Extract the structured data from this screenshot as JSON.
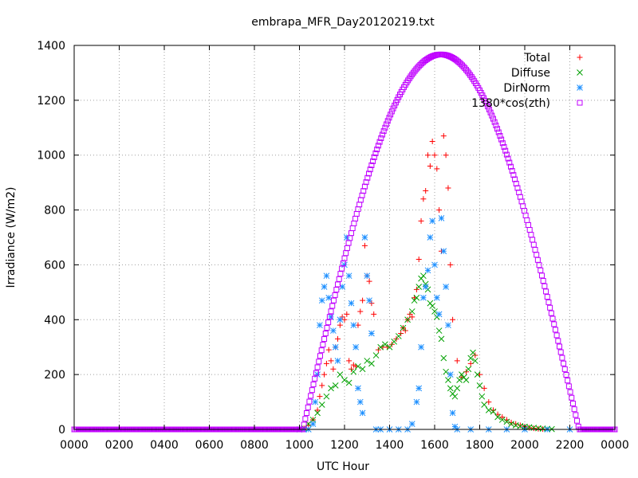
{
  "chart_data": {
    "type": "scatter",
    "title": "embrapa_MFR_Day20120219.txt",
    "xlabel": "UTC Hour",
    "ylabel": "Irradiance (W/m2)",
    "xlim": [
      0,
      2400
    ],
    "ylim": [
      0,
      1400
    ],
    "x_tick_labels": [
      "0000",
      "0200",
      "0400",
      "0600",
      "0800",
      "1000",
      "1200",
      "1400",
      "1600",
      "1800",
      "2000",
      "2200",
      "0000"
    ],
    "y_tick_labels": [
      "0",
      "200",
      "400",
      "600",
      "800",
      "1000",
      "1200",
      "1400"
    ],
    "grid": true,
    "legend_position": "top-right",
    "series": [
      {
        "name": "Total",
        "marker": "plus",
        "color": "#ff0000",
        "points": [
          [
            1000,
            0
          ],
          [
            1020,
            4
          ],
          [
            1040,
            15
          ],
          [
            1060,
            35
          ],
          [
            1080,
            70
          ],
          [
            1090,
            120
          ],
          [
            1100,
            160
          ],
          [
            1110,
            200
          ],
          [
            1120,
            240
          ],
          [
            1130,
            290
          ],
          [
            1140,
            250
          ],
          [
            1150,
            220
          ],
          [
            1160,
            300
          ],
          [
            1170,
            330
          ],
          [
            1180,
            380
          ],
          [
            1190,
            410
          ],
          [
            1200,
            400
          ],
          [
            1210,
            420
          ],
          [
            1220,
            250
          ],
          [
            1230,
            220
          ],
          [
            1240,
            235
          ],
          [
            1250,
            230
          ],
          [
            1260,
            380
          ],
          [
            1270,
            430
          ],
          [
            1280,
            470
          ],
          [
            1290,
            670
          ],
          [
            1300,
            560
          ],
          [
            1310,
            540
          ],
          [
            1320,
            460
          ],
          [
            1330,
            420
          ],
          [
            1350,
            290
          ],
          [
            1370,
            300
          ],
          [
            1390,
            300
          ],
          [
            1410,
            310
          ],
          [
            1430,
            330
          ],
          [
            1450,
            350
          ],
          [
            1460,
            370
          ],
          [
            1470,
            360
          ],
          [
            1480,
            400
          ],
          [
            1490,
            420
          ],
          [
            1500,
            410
          ],
          [
            1510,
            480
          ],
          [
            1520,
            510
          ],
          [
            1530,
            620
          ],
          [
            1540,
            760
          ],
          [
            1550,
            840
          ],
          [
            1560,
            870
          ],
          [
            1570,
            1000
          ],
          [
            1580,
            960
          ],
          [
            1590,
            1050
          ],
          [
            1600,
            1000
          ],
          [
            1610,
            950
          ],
          [
            1620,
            800
          ],
          [
            1630,
            650
          ],
          [
            1640,
            1070
          ],
          [
            1650,
            1000
          ],
          [
            1660,
            880
          ],
          [
            1670,
            600
          ],
          [
            1680,
            400
          ],
          [
            1700,
            250
          ],
          [
            1720,
            190
          ],
          [
            1740,
            210
          ],
          [
            1760,
            240
          ],
          [
            1780,
            270
          ],
          [
            1800,
            200
          ],
          [
            1820,
            150
          ],
          [
            1840,
            100
          ],
          [
            1860,
            70
          ],
          [
            1880,
            55
          ],
          [
            1900,
            45
          ],
          [
            1920,
            35
          ],
          [
            1940,
            25
          ],
          [
            1960,
            20
          ],
          [
            1980,
            15
          ],
          [
            2000,
            10
          ],
          [
            2020,
            6
          ],
          [
            2040,
            4
          ],
          [
            2060,
            2
          ],
          [
            2080,
            1
          ]
        ]
      },
      {
        "name": "Diffuse",
        "marker": "cross",
        "color": "#00a000",
        "points": [
          [
            1000,
            0
          ],
          [
            1020,
            5
          ],
          [
            1040,
            20
          ],
          [
            1060,
            35
          ],
          [
            1080,
            60
          ],
          [
            1100,
            90
          ],
          [
            1120,
            120
          ],
          [
            1140,
            150
          ],
          [
            1160,
            160
          ],
          [
            1180,
            200
          ],
          [
            1200,
            180
          ],
          [
            1220,
            170
          ],
          [
            1240,
            210
          ],
          [
            1260,
            230
          ],
          [
            1280,
            220
          ],
          [
            1300,
            250
          ],
          [
            1320,
            240
          ],
          [
            1340,
            270
          ],
          [
            1360,
            300
          ],
          [
            1380,
            310
          ],
          [
            1400,
            300
          ],
          [
            1420,
            320
          ],
          [
            1440,
            340
          ],
          [
            1460,
            370
          ],
          [
            1480,
            400
          ],
          [
            1500,
            430
          ],
          [
            1510,
            470
          ],
          [
            1520,
            480
          ],
          [
            1530,
            520
          ],
          [
            1540,
            550
          ],
          [
            1550,
            560
          ],
          [
            1560,
            530
          ],
          [
            1570,
            510
          ],
          [
            1580,
            460
          ],
          [
            1590,
            450
          ],
          [
            1600,
            430
          ],
          [
            1610,
            410
          ],
          [
            1620,
            360
          ],
          [
            1630,
            330
          ],
          [
            1640,
            260
          ],
          [
            1650,
            210
          ],
          [
            1660,
            180
          ],
          [
            1670,
            150
          ],
          [
            1680,
            130
          ],
          [
            1690,
            120
          ],
          [
            1700,
            150
          ],
          [
            1710,
            180
          ],
          [
            1720,
            200
          ],
          [
            1730,
            190
          ],
          [
            1740,
            180
          ],
          [
            1750,
            220
          ],
          [
            1760,
            260
          ],
          [
            1770,
            280
          ],
          [
            1780,
            250
          ],
          [
            1790,
            200
          ],
          [
            1800,
            160
          ],
          [
            1810,
            120
          ],
          [
            1820,
            90
          ],
          [
            1840,
            70
          ],
          [
            1860,
            65
          ],
          [
            1880,
            45
          ],
          [
            1900,
            35
          ],
          [
            1920,
            28
          ],
          [
            1940,
            20
          ],
          [
            1960,
            15
          ],
          [
            1980,
            12
          ],
          [
            2000,
            10
          ],
          [
            2020,
            8
          ],
          [
            2040,
            6
          ],
          [
            2060,
            4
          ],
          [
            2080,
            3
          ],
          [
            2100,
            2
          ],
          [
            2120,
            1
          ]
        ]
      },
      {
        "name": "DirNorm",
        "marker": "star",
        "color": "#1e90ff",
        "points": [
          [
            1000,
            0
          ],
          [
            1020,
            0
          ],
          [
            1040,
            0
          ],
          [
            1060,
            20
          ],
          [
            1070,
            100
          ],
          [
            1080,
            200
          ],
          [
            1090,
            380
          ],
          [
            1100,
            470
          ],
          [
            1110,
            520
          ],
          [
            1120,
            560
          ],
          [
            1130,
            480
          ],
          [
            1140,
            410
          ],
          [
            1150,
            360
          ],
          [
            1160,
            300
          ],
          [
            1170,
            250
          ],
          [
            1180,
            400
          ],
          [
            1190,
            520
          ],
          [
            1200,
            600
          ],
          [
            1210,
            700
          ],
          [
            1220,
            560
          ],
          [
            1230,
            460
          ],
          [
            1240,
            380
          ],
          [
            1250,
            300
          ],
          [
            1260,
            150
          ],
          [
            1270,
            100
          ],
          [
            1280,
            60
          ],
          [
            1290,
            700
          ],
          [
            1300,
            560
          ],
          [
            1310,
            470
          ],
          [
            1320,
            350
          ],
          [
            1340,
            0
          ],
          [
            1360,
            0
          ],
          [
            1400,
            0
          ],
          [
            1440,
            0
          ],
          [
            1480,
            0
          ],
          [
            1500,
            20
          ],
          [
            1520,
            100
          ],
          [
            1530,
            150
          ],
          [
            1540,
            300
          ],
          [
            1550,
            480
          ],
          [
            1560,
            520
          ],
          [
            1570,
            580
          ],
          [
            1580,
            700
          ],
          [
            1590,
            760
          ],
          [
            1600,
            600
          ],
          [
            1610,
            480
          ],
          [
            1620,
            420
          ],
          [
            1630,
            770
          ],
          [
            1640,
            650
          ],
          [
            1650,
            520
          ],
          [
            1660,
            380
          ],
          [
            1670,
            200
          ],
          [
            1680,
            60
          ],
          [
            1690,
            10
          ],
          [
            1700,
            0
          ],
          [
            1760,
            0
          ],
          [
            1840,
            0
          ],
          [
            1920,
            0
          ],
          [
            2000,
            0
          ],
          [
            2100,
            0
          ],
          [
            2200,
            0
          ]
        ]
      },
      {
        "name": "1380*cos(zth)",
        "marker": "square",
        "color": "#c000ff",
        "curve": {
          "amplitude": 1367,
          "peak_hour": 1628,
          "half_width": 613,
          "sample_step": 6
        }
      }
    ]
  }
}
